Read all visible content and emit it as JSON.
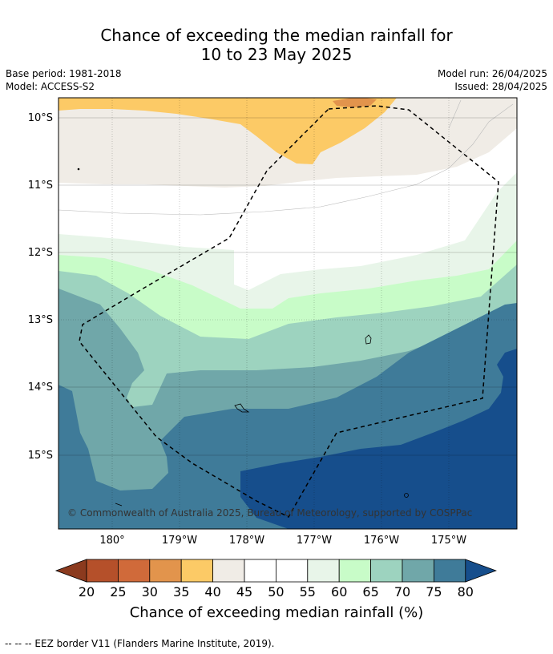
{
  "title": {
    "line1": "Chance of exceeding the median rainfall for",
    "line2": "10 to 23 May 2025"
  },
  "meta": {
    "base_period": "Base period: 1981-2018",
    "model": "Model: ACCESS-S2",
    "model_run": "Model run: 26/04/2025",
    "issued": "Issued: 28/04/2025"
  },
  "map": {
    "lat_labels": [
      "10°S",
      "11°S",
      "12°S",
      "13°S",
      "14°S",
      "15°S"
    ],
    "lon_labels": [
      "180°",
      "179°W",
      "178°W",
      "177°W",
      "176°W",
      "175°W"
    ],
    "copyright": "© Commonwealth of Australia 2025, Bureau of Meteorology, supported by COSPPac"
  },
  "colorbar": {
    "ticks": [
      "20",
      "25",
      "30",
      "35",
      "40",
      "45",
      "50",
      "55",
      "60",
      "65",
      "70",
      "75",
      "80"
    ],
    "colors": [
      "#8b3a1e",
      "#b5502a",
      "#d06a3a",
      "#e2944c",
      "#fcca66",
      "#f0ece6",
      "#ffffff",
      "#ffffff",
      "#e8f5e9",
      "#c8fcc8",
      "#9dd3bf",
      "#70a7a9",
      "#3f7b99",
      "#164e8c"
    ],
    "label": "Chance of exceeding median rainfall (%)"
  },
  "footer": {
    "legend_text": "--  --  -- EEZ border V11 (Flanders Marine Institute, 2019)."
  }
}
